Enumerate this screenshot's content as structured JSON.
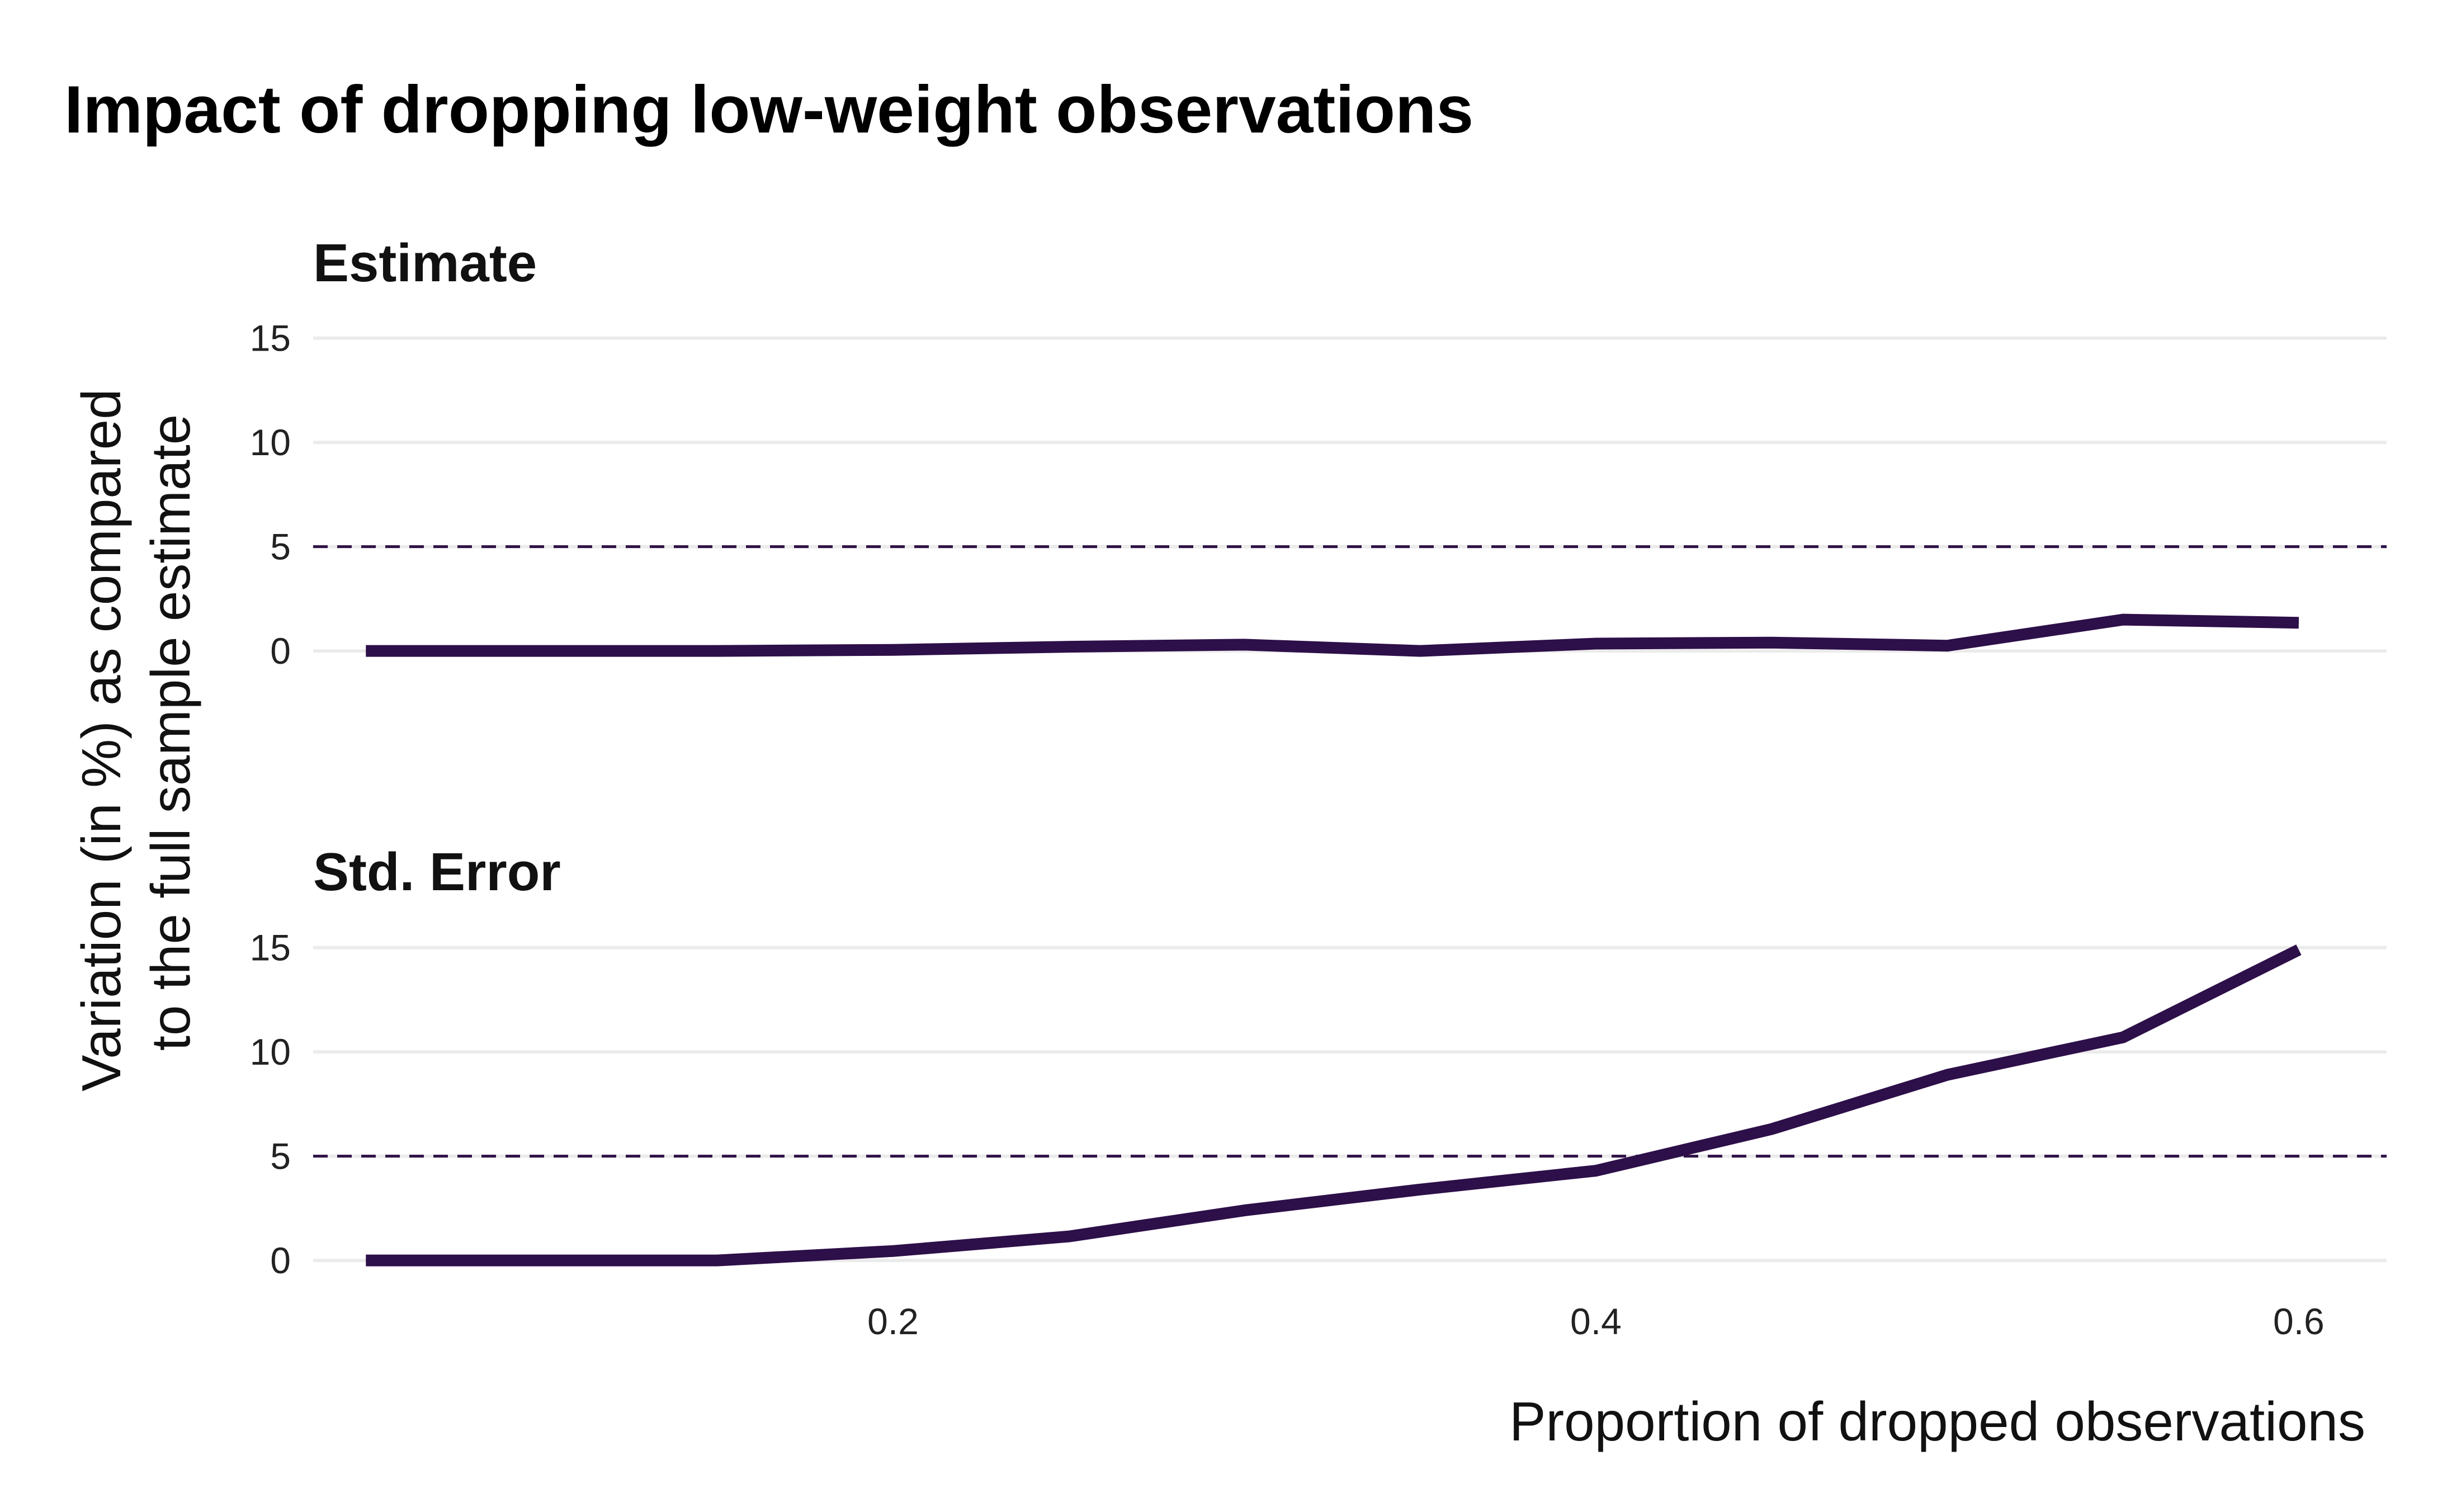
{
  "chart_data": {
    "type": "line",
    "title": "Impact of dropping low-weight observations",
    "xlabel": "Proportion of dropped observations",
    "ylabel_line1": "Variation (in %) as compared",
    "ylabel_line2": "to the full sample estimate",
    "xlim": [
      0.035,
      0.625
    ],
    "x_ticks": [
      {
        "value": 0.2,
        "label": "0.2"
      },
      {
        "value": 0.4,
        "label": "0.4"
      },
      {
        "value": 0.6,
        "label": "0.6"
      }
    ],
    "ylim": [
      -1.5,
      16.2
    ],
    "y_ticks": [
      {
        "value": 0,
        "label": "0"
      },
      {
        "value": 5,
        "label": "5"
      },
      {
        "value": 10,
        "label": "10"
      },
      {
        "value": 15,
        "label": "15"
      }
    ],
    "reference_line": 5,
    "line_color": "#2d0f49",
    "reference_color": "#2f1146",
    "grid": true,
    "legend": "none",
    "x": [
      0.05,
      0.1,
      0.15,
      0.2,
      0.25,
      0.3,
      0.35,
      0.4,
      0.45,
      0.5,
      0.55,
      0.6
    ],
    "panels": [
      {
        "title": "Estimate",
        "values": [
          0.0,
          0.0,
          0.0,
          0.05,
          0.2,
          0.3,
          0.0,
          0.35,
          0.4,
          0.25,
          1.5,
          1.35
        ]
      },
      {
        "title": "Std. Error",
        "values": [
          0.0,
          0.0,
          0.0,
          0.45,
          1.15,
          2.4,
          3.4,
          4.3,
          6.3,
          8.9,
          10.7,
          14.9
        ]
      }
    ]
  }
}
